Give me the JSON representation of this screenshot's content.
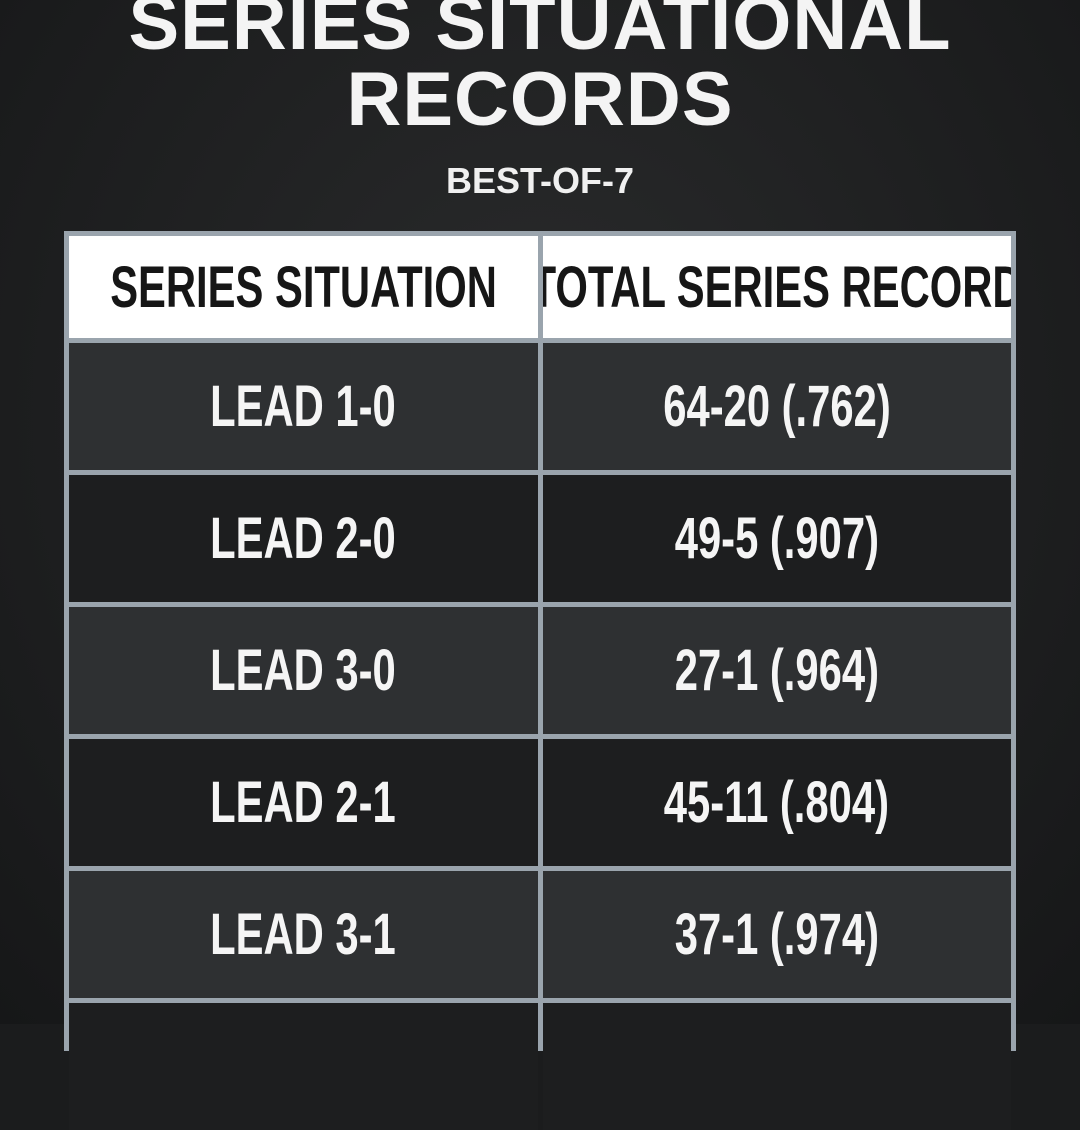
{
  "header": {
    "title_lines": [
      "SERIES SITUATIONAL",
      "RECORDS"
    ],
    "subtitle": "BEST-OF-7"
  },
  "table": {
    "columns": [
      "SERIES SITUATION",
      "TOTAL SERIES RECORD"
    ],
    "rows": [
      [
        "LEAD 1-0",
        "64-20 (.762)"
      ],
      [
        "LEAD 2-0",
        "49-5 (.907)"
      ],
      [
        "LEAD 3-0",
        "27-1 (.964)"
      ],
      [
        "LEAD 2-1",
        "45-11 (.804)"
      ],
      [
        "LEAD 3-1",
        "37-1 (.974)"
      ]
    ]
  }
}
